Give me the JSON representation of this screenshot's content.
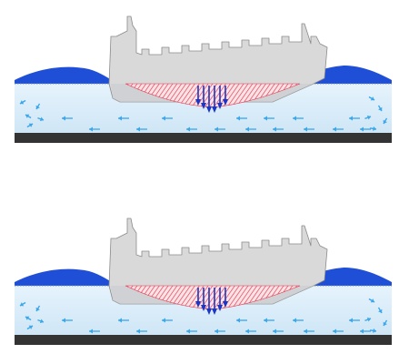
{
  "figure": {
    "panels": [
      {
        "id": "top"
      },
      {
        "id": "bottom"
      }
    ],
    "colors": {
      "background": "#ffffff",
      "hull_fill": "#d9d9d9",
      "hull_stroke": "#8a8a8a",
      "water_top": "#e6f3fc",
      "water_bottom": "#cfe6f6",
      "wave": "#1f4fd6",
      "seabed": "#333333",
      "flow_arrow": "#3aa7ea",
      "pressure_hatch": "#e2334b",
      "pressure_fill": "#fbe3e6",
      "pressure_arrow": "#1a36c9"
    },
    "icons": [
      "ship-hull",
      "wave-crest",
      "flow-arrow",
      "pressure-arrow",
      "seabed"
    ]
  }
}
